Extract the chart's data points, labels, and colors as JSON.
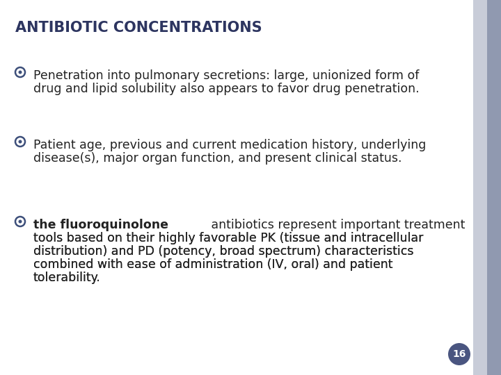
{
  "title": "ANTIBIOTIC CONCENTRATIONS",
  "title_fontsize": 15,
  "title_color": "#2d3560",
  "background_color": "#ffffff",
  "right_border_color1": "#c8ccd8",
  "right_border_color2": "#9099b0",
  "slide_bg": "#ffffff",
  "bullet_color": "#3d4f7a",
  "text_color": "#222222",
  "text_fontsize": 12.5,
  "page_number": "16",
  "page_badge_color": "#4a5580",
  "page_text_color": "#ffffff",
  "bullets": [
    {
      "bold_part": "",
      "normal_part": "Penetration into pulmonary secretions: large, unionized form of\ndrug and lipid solubility also appears to favor drug penetration."
    },
    {
      "bold_part": "",
      "normal_part": "Patient age, previous and current medication history, underlying\ndisease(s), major organ function, and present clinical status."
    },
    {
      "bold_part": "the fluoroquinolone",
      "normal_part": " antibiotics represent important treatment\ntools based on their highly favorable PK (tissue and intracellular\ndistribution) and PD (potency, broad spectrum) characteristics\ncombined with ease of administration (IV, oral) and patient\ntolerability."
    }
  ]
}
